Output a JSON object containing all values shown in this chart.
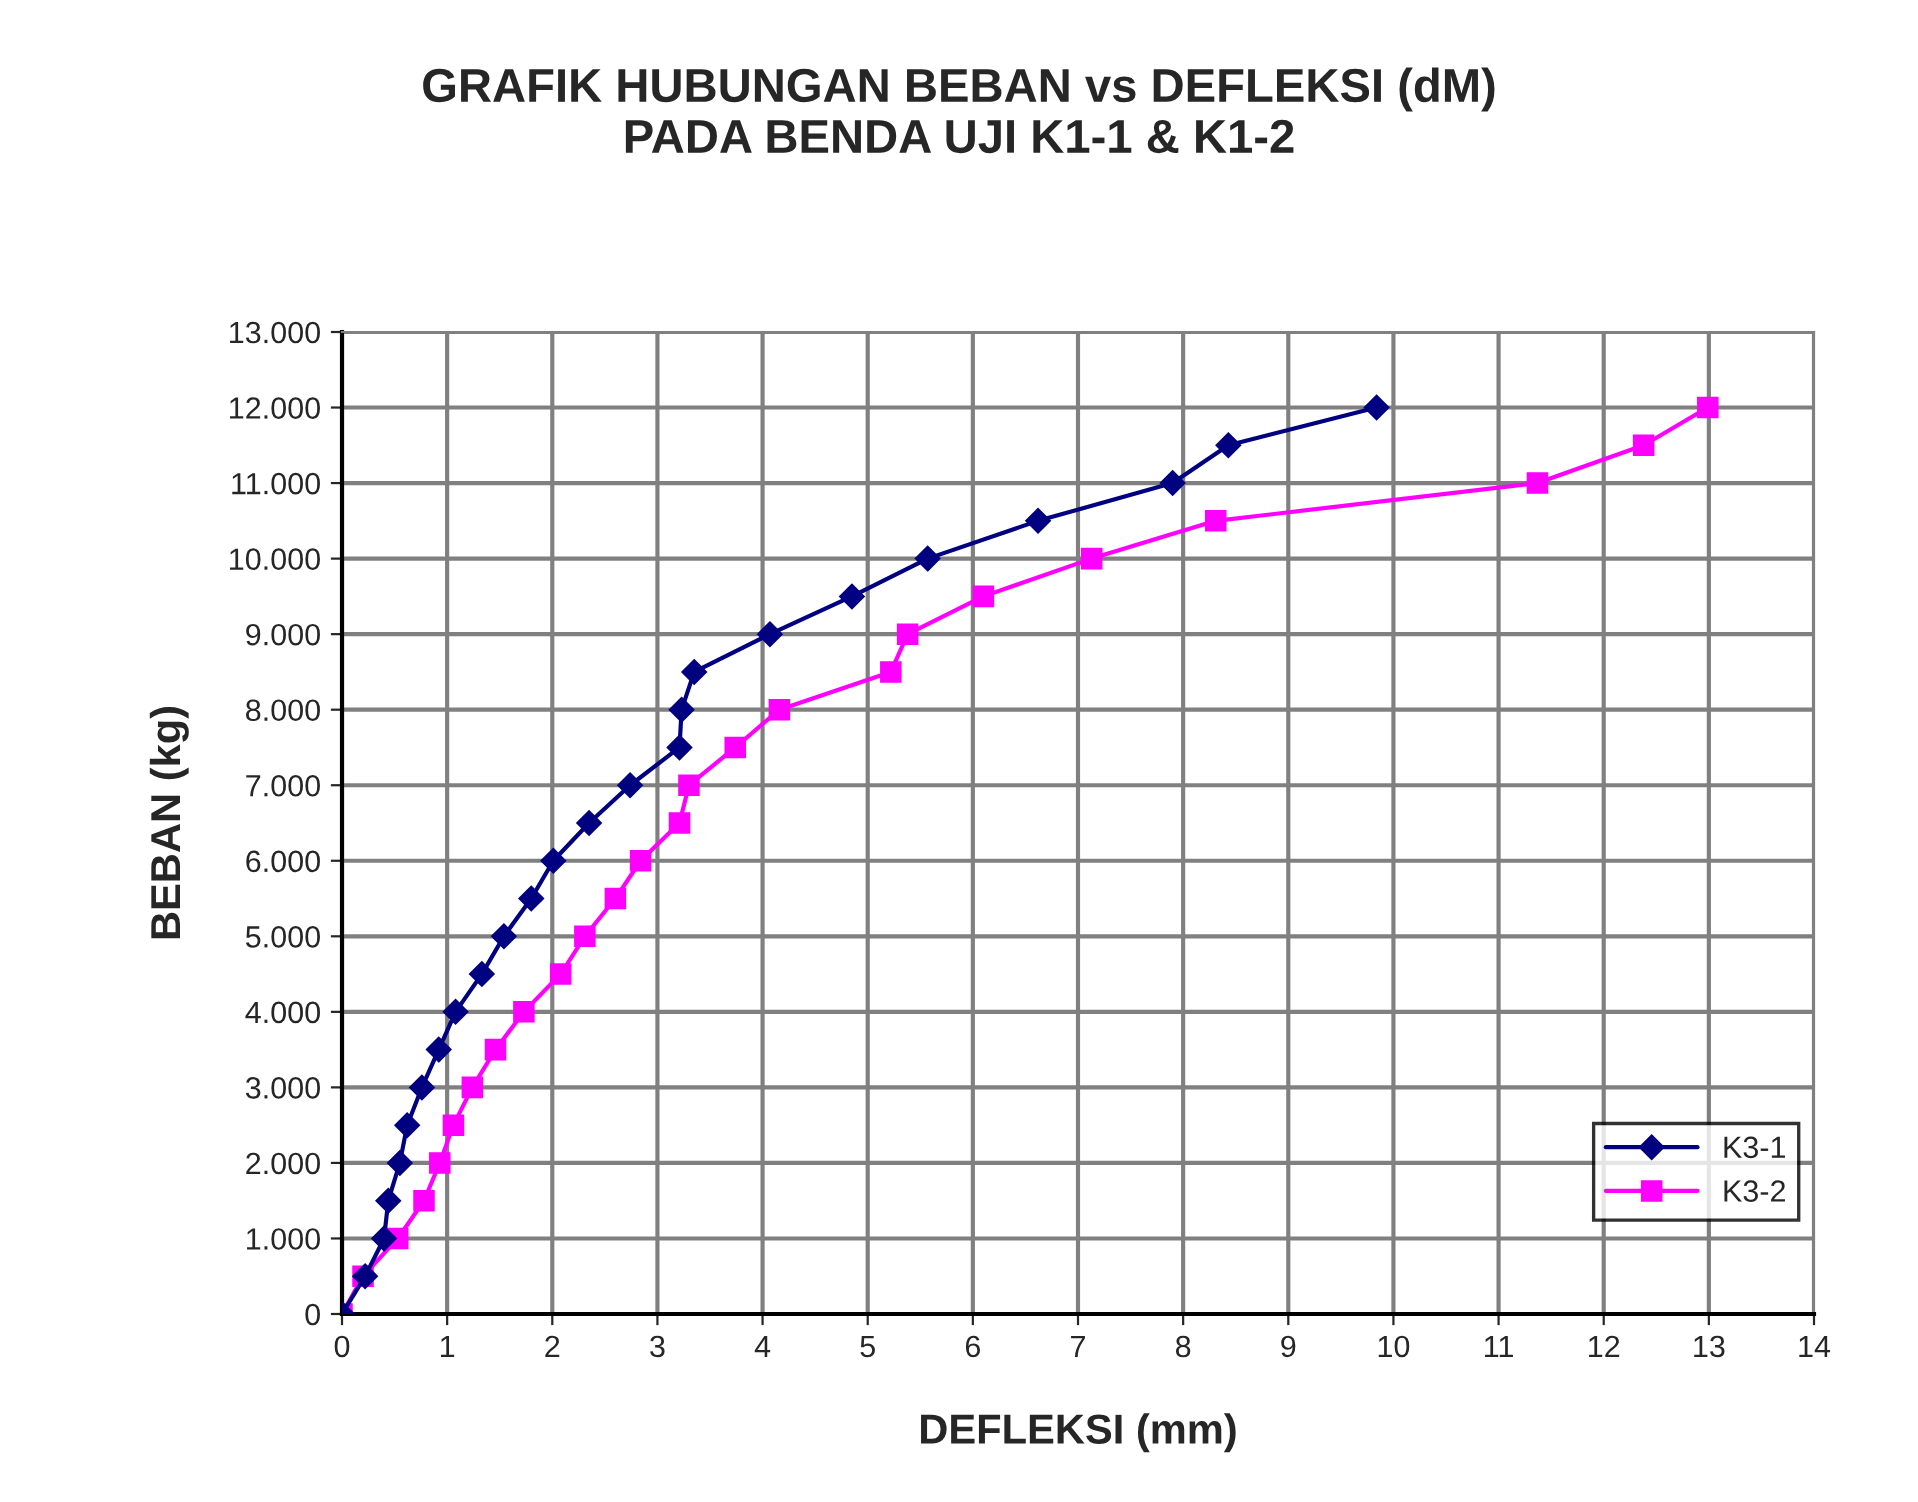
{
  "chart_data": {
    "type": "line",
    "title": "GRAFIK HUBUNGAN BEBAN vs DEFLEKSI (dM)\nPADA BENDA UJI K1-1 & K1-2",
    "xlabel": "DEFLEKSI (mm)",
    "ylabel": "BEBAN (kg)",
    "xlim": [
      0,
      14
    ],
    "xticks": [
      0,
      1,
      2,
      3,
      4,
      5,
      6,
      7,
      8,
      9,
      10,
      11,
      12,
      13,
      14
    ],
    "ylim": [
      0,
      13000
    ],
    "yticks": [
      {
        "value": 0,
        "label": "0"
      },
      {
        "value": 1000,
        "label": "1.000"
      },
      {
        "value": 2000,
        "label": "2.000"
      },
      {
        "value": 3000,
        "label": "3.000"
      },
      {
        "value": 4000,
        "label": "4.000"
      },
      {
        "value": 5000,
        "label": "5.000"
      },
      {
        "value": 6000,
        "label": "6.000"
      },
      {
        "value": 7000,
        "label": "7.000"
      },
      {
        "value": 8000,
        "label": "8.000"
      },
      {
        "value": 9000,
        "label": "9.000"
      },
      {
        "value": 10000,
        "label": "10.000"
      },
      {
        "value": 11000,
        "label": "11.000"
      },
      {
        "value": 12000,
        "label": "12.000"
      },
      {
        "value": 13000,
        "label": "13.000"
      }
    ],
    "grid": true,
    "legend": "lower right",
    "line_style": "solid",
    "series": [
      {
        "name": "K3-1",
        "color": "#000080",
        "marker": "diamond",
        "x": [
          0,
          0.22,
          0.4,
          0.44,
          0.55,
          0.62,
          0.76,
          0.92,
          1.08,
          1.33,
          1.54,
          1.8,
          2.01,
          2.35,
          2.74,
          3.21,
          3.23,
          3.35,
          4.07,
          4.85,
          5.57,
          6.62,
          7.9,
          8.43,
          9.84
        ],
        "values": [
          0,
          500,
          1000,
          1500,
          2000,
          2500,
          3000,
          3500,
          4000,
          4500,
          5000,
          5500,
          6000,
          6500,
          7000,
          7500,
          8000,
          8500,
          9000,
          9500,
          10000,
          10500,
          11000,
          11500,
          12000
        ]
      },
      {
        "name": "K3-2",
        "color": "#ff00ff",
        "marker": "square",
        "x": [
          0,
          0.2,
          0.53,
          0.78,
          0.93,
          1.06,
          1.24,
          1.46,
          1.73,
          2.08,
          2.31,
          2.6,
          2.84,
          3.21,
          3.3,
          3.74,
          4.16,
          5.22,
          5.38,
          6.1,
          7.13,
          8.31,
          11.37,
          12.38,
          12.99
        ],
        "values": [
          0,
          500,
          1000,
          1500,
          2000,
          2500,
          3000,
          3500,
          4000,
          4500,
          5000,
          5500,
          6000,
          6500,
          7000,
          7500,
          8000,
          8500,
          9000,
          9500,
          10000,
          10500,
          11000,
          11500,
          12000
        ]
      }
    ]
  }
}
